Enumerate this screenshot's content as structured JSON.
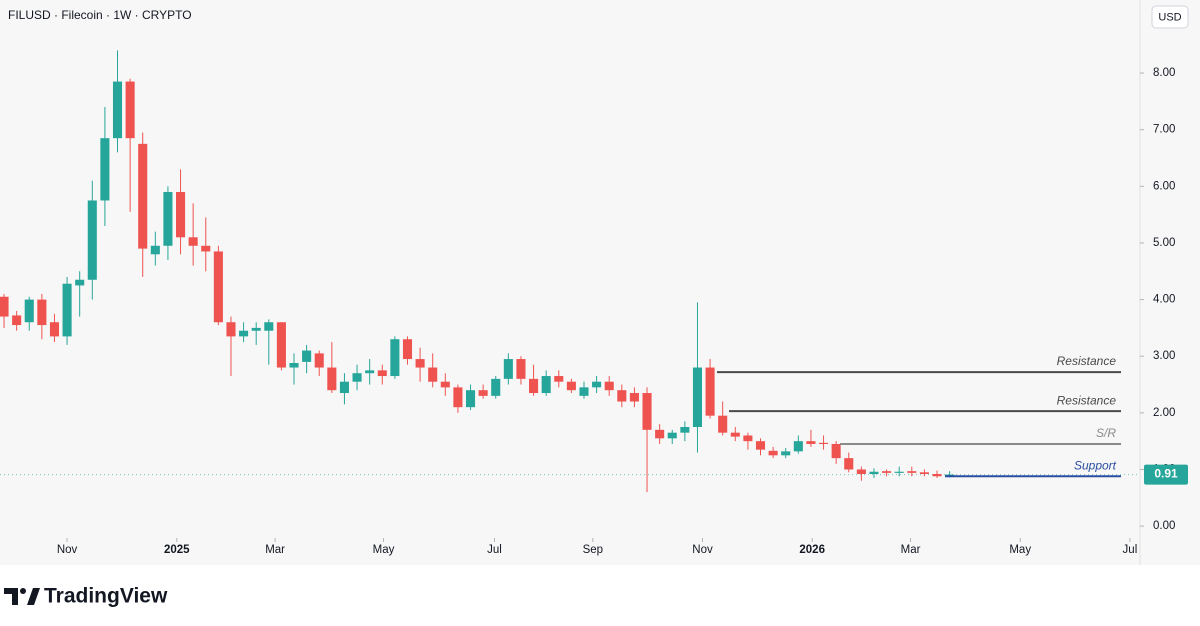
{
  "chart_data": {
    "type": "candlestick",
    "title": "FILUSD · Filecoin · 1W · CRYPTO",
    "currency": "USD",
    "up_color": "#26a69a",
    "down_color": "#ef5350",
    "categories": [
      null,
      null,
      null,
      null,
      null,
      null,
      null,
      null,
      null,
      null,
      null,
      null,
      null,
      null,
      null,
      null,
      null,
      null,
      null,
      null,
      null,
      null,
      null,
      null,
      null,
      null,
      null,
      null,
      null,
      null,
      null,
      null,
      null,
      null,
      null,
      null,
      null,
      null,
      null,
      null,
      null,
      null,
      null,
      null,
      null,
      null,
      null,
      null,
      null,
      null,
      null,
      null,
      null,
      null,
      null,
      null,
      null,
      null,
      null,
      null,
      null,
      null,
      null,
      null,
      null,
      null,
      null,
      null,
      null,
      null,
      null,
      null,
      null,
      null,
      null,
      null
    ],
    "open": [
      4.05,
      3.72,
      3.6,
      4.0,
      3.6,
      3.35,
      4.25,
      4.35,
      5.75,
      6.85,
      7.85,
      6.75,
      4.8,
      4.95,
      5.9,
      5.1,
      4.95,
      4.85,
      3.6,
      3.35,
      3.45,
      3.45,
      3.6,
      2.8,
      2.9,
      3.05,
      2.8,
      2.35,
      2.55,
      2.7,
      2.75,
      2.65,
      3.3,
      2.95,
      2.8,
      2.55,
      2.45,
      2.1,
      2.4,
      2.3,
      2.6,
      2.95,
      2.6,
      2.35,
      2.65,
      2.55,
      2.3,
      2.45,
      2.55,
      2.4,
      2.35,
      2.35,
      1.7,
      1.55,
      1.65,
      1.75,
      2.8,
      1.95,
      1.65,
      1.6,
      1.5,
      1.33,
      1.25,
      1.32,
      1.5,
      1.47,
      1.45,
      1.2,
      1.0,
      0.92,
      0.97,
      0.94,
      0.97,
      0.95,
      0.92,
      0.88
    ],
    "high": [
      4.1,
      3.8,
      4.05,
      4.1,
      3.75,
      4.4,
      4.5,
      6.1,
      7.4,
      8.4,
      7.9,
      6.95,
      5.2,
      6.0,
      6.3,
      5.7,
      5.45,
      4.95,
      3.7,
      3.6,
      3.6,
      3.65,
      3.6,
      3.05,
      3.2,
      3.1,
      3.25,
      2.7,
      2.85,
      2.95,
      2.85,
      3.35,
      3.35,
      3.15,
      3.05,
      2.7,
      2.5,
      2.5,
      2.5,
      2.65,
      3.05,
      3.0,
      2.85,
      2.75,
      2.75,
      2.6,
      2.55,
      2.65,
      2.65,
      2.5,
      2.45,
      2.45,
      1.8,
      1.7,
      1.85,
      3.95,
      2.95,
      2.2,
      1.75,
      1.65,
      1.55,
      1.4,
      1.38,
      1.6,
      1.7,
      1.6,
      1.5,
      1.3,
      1.05,
      1.02,
      1.0,
      1.05,
      1.05,
      1.0,
      0.98,
      0.97
    ],
    "low": [
      3.5,
      3.45,
      3.45,
      3.3,
      3.25,
      3.2,
      3.7,
      4.0,
      5.3,
      6.6,
      5.55,
      4.4,
      4.6,
      4.7,
      4.8,
      4.6,
      4.5,
      3.55,
      2.65,
      3.25,
      3.2,
      2.85,
      2.75,
      2.5,
      2.7,
      2.65,
      2.35,
      2.15,
      2.4,
      2.5,
      2.5,
      2.6,
      2.85,
      2.55,
      2.45,
      2.3,
      2.0,
      2.05,
      2.25,
      2.25,
      2.5,
      2.5,
      2.3,
      2.3,
      2.45,
      2.35,
      2.25,
      2.35,
      2.3,
      2.1,
      2.1,
      0.6,
      1.45,
      1.45,
      1.5,
      1.3,
      1.9,
      1.6,
      1.5,
      1.35,
      1.25,
      1.2,
      1.2,
      1.28,
      1.4,
      1.35,
      1.1,
      0.95,
      0.8,
      0.85,
      0.88,
      0.88,
      0.88,
      0.88,
      0.85,
      0.86
    ],
    "close": [
      3.7,
      3.55,
      4.0,
      3.55,
      3.35,
      4.28,
      4.35,
      5.75,
      6.85,
      7.85,
      6.85,
      4.9,
      4.95,
      5.9,
      5.1,
      4.95,
      4.85,
      3.6,
      3.35,
      3.45,
      3.5,
      3.6,
      2.8,
      2.88,
      3.1,
      2.8,
      2.4,
      2.55,
      2.7,
      2.75,
      2.65,
      3.3,
      2.95,
      2.8,
      2.55,
      2.45,
      2.1,
      2.4,
      2.3,
      2.6,
      2.95,
      2.6,
      2.35,
      2.65,
      2.55,
      2.4,
      2.45,
      2.55,
      2.4,
      2.2,
      2.2,
      1.7,
      1.55,
      1.65,
      1.75,
      2.8,
      1.95,
      1.65,
      1.58,
      1.5,
      1.35,
      1.25,
      1.32,
      1.5,
      1.45,
      1.45,
      1.2,
      1.0,
      0.92,
      0.96,
      0.94,
      0.96,
      0.94,
      0.92,
      0.88,
      0.91
    ],
    "xlim": [
      -0.32,
      90.1
    ],
    "xticks": [
      {
        "value": 5.0,
        "label": "Nov"
      },
      {
        "value": 13.7,
        "label": "2025"
      },
      {
        "value": 21.5,
        "label": "Mar"
      },
      {
        "value": 30.1,
        "label": "May"
      },
      {
        "value": 38.9,
        "label": "Jul"
      },
      {
        "value": 46.7,
        "label": "Sep"
      },
      {
        "value": 55.4,
        "label": "Nov"
      },
      {
        "value": 64.1,
        "label": "2026"
      },
      {
        "value": 71.9,
        "label": "Mar"
      },
      {
        "value": 80.6,
        "label": "May"
      },
      {
        "value": 89.3,
        "label": "Jul"
      }
    ],
    "ylim": [
      -0.21,
      9.29
    ],
    "yticks": [
      {
        "value": 0,
        "label": "0.00"
      },
      {
        "value": 1,
        "label": "1.00"
      },
      {
        "value": 2,
        "label": "2.00"
      },
      {
        "value": 3,
        "label": "3.00"
      },
      {
        "value": 4,
        "label": "4.00"
      },
      {
        "value": 5,
        "label": "5.00"
      },
      {
        "value": 6,
        "label": "6.00"
      },
      {
        "value": 7,
        "label": "7.00"
      },
      {
        "value": 8,
        "label": "8.00"
      }
    ],
    "last_price": 0.91,
    "annotations": [
      {
        "label": "Resistance",
        "value": 2.72,
        "color": "#4a4a4a"
      },
      {
        "label": "Resistance",
        "value": 2.03,
        "color": "#4a4a4a"
      },
      {
        "label": "S/R",
        "value": 1.45,
        "color": "#8a8a8a"
      },
      {
        "label": "Support",
        "value": 0.88,
        "color": "#2a4ea0"
      }
    ]
  },
  "footer": {
    "brand": "TradingView"
  }
}
